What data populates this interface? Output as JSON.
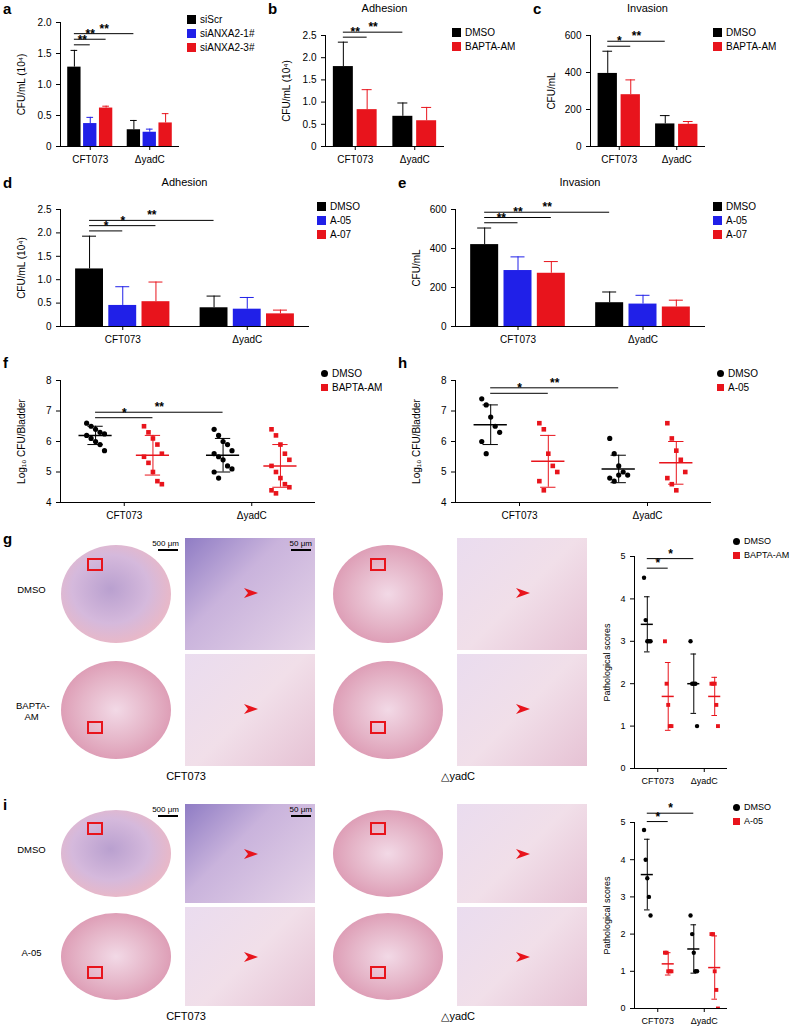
{
  "chart_data": [
    {
      "panel": "a",
      "type": "bar",
      "categories": [
        "CFT073",
        "ΔyadC"
      ],
      "ylabel": "CFU/mL (10⁴)",
      "ylim": [
        0,
        2
      ],
      "yticks": [
        0,
        0.5,
        {
          "value": 1,
          "label": "1.0"
        },
        1.5,
        {
          "value": 2,
          "label": "2.0"
        }
      ],
      "legend": "right",
      "series": [
        {
          "name": "siScr",
          "color": "#000000",
          "values": [
            1.28,
            0.27
          ],
          "errors": [
            0.27,
            0.15
          ]
        },
        {
          "name": "siANXA2-1#",
          "color": "#2020e8",
          "values": [
            0.37,
            0.23
          ],
          "errors": [
            0.1,
            0.05
          ]
        },
        {
          "name": "siANXA2-3#",
          "color": "#e8141c",
          "values": [
            0.62,
            0.38
          ],
          "errors": [
            0.03,
            0.15
          ]
        }
      ],
      "comparisons": [
        {
          "label": "**",
          "from": [
            0,
            0
          ],
          "to": [
            0,
            1
          ]
        },
        {
          "label": "**",
          "from": [
            0,
            0
          ],
          "to": [
            0,
            2
          ]
        },
        {
          "label": "**",
          "from": [
            0,
            0
          ],
          "to": [
            1,
            0
          ]
        }
      ]
    },
    {
      "panel": "b",
      "type": "bar",
      "title": "Adhesion",
      "categories": [
        "CFT073",
        "ΔyadC"
      ],
      "ylabel": "CFU/mL (10⁴)",
      "ylim": [
        0,
        2.5
      ],
      "yticks": [
        0,
        0.5,
        {
          "value": 1,
          "label": "1.0"
        },
        1.5,
        {
          "value": 2,
          "label": "2.0"
        },
        2.5
      ],
      "legend": "right",
      "series": [
        {
          "name": "DMSO",
          "color": "#000000",
          "values": [
            1.8,
            0.68
          ],
          "errors": [
            0.55,
            0.3
          ]
        },
        {
          "name": "BAPTA-AM",
          "color": "#e8141c",
          "values": [
            0.83,
            0.58
          ],
          "errors": [
            0.45,
            0.3
          ]
        }
      ],
      "comparisons": [
        {
          "label": "**",
          "from": [
            0,
            0
          ],
          "to": [
            0,
            1
          ]
        },
        {
          "label": "**",
          "from": [
            0,
            0
          ],
          "to": [
            1,
            0
          ]
        }
      ]
    },
    {
      "panel": "c",
      "type": "bar",
      "title": "Invasion",
      "categories": [
        "CFT073",
        "ΔyadC"
      ],
      "ylabel": "CFU/mL",
      "ylim": [
        0,
        600
      ],
      "yticks": [
        0,
        200,
        400,
        600
      ],
      "legend": "right",
      "series": [
        {
          "name": "DMSO",
          "color": "#000000",
          "values": [
            395,
            122
          ],
          "errors": [
            120,
            45
          ]
        },
        {
          "name": "BAPTA-AM",
          "color": "#e8141c",
          "values": [
            280,
            120
          ],
          "errors": [
            80,
            15
          ]
        }
      ],
      "comparisons": [
        {
          "label": "*",
          "from": [
            0,
            0
          ],
          "to": [
            0,
            1
          ]
        },
        {
          "label": "**",
          "from": [
            0,
            0
          ],
          "to": [
            1,
            0
          ]
        }
      ]
    },
    {
      "panel": "d",
      "type": "bar",
      "title": "Adhesion",
      "categories": [
        "CFT073",
        "ΔyadC"
      ],
      "ylabel": "CFU/mL (10⁴)",
      "ylim": [
        0,
        2.5
      ],
      "yticks": [
        0,
        0.5,
        {
          "value": 1,
          "label": "1.0"
        },
        1.5,
        {
          "value": 2,
          "label": "2.0"
        },
        2.5
      ],
      "legend": "right",
      "series": [
        {
          "name": "DMSO",
          "color": "#000000",
          "values": [
            1.23,
            0.4
          ],
          "errors": [
            0.7,
            0.25
          ]
        },
        {
          "name": "A-05",
          "color": "#2020e8",
          "values": [
            0.45,
            0.37
          ],
          "errors": [
            0.4,
            0.25
          ]
        },
        {
          "name": "A-07",
          "color": "#e8141c",
          "values": [
            0.53,
            0.27
          ],
          "errors": [
            0.42,
            0.08
          ]
        }
      ],
      "comparisons": [
        {
          "label": "*",
          "from": [
            0,
            0
          ],
          "to": [
            0,
            1
          ]
        },
        {
          "label": "*",
          "from": [
            0,
            0
          ],
          "to": [
            0,
            2
          ]
        },
        {
          "label": "**",
          "from": [
            0,
            0
          ],
          "to": [
            1,
            0
          ]
        }
      ]
    },
    {
      "panel": "e",
      "type": "bar",
      "title": "Invasion",
      "categories": [
        "CFT073",
        "ΔyadC"
      ],
      "ylabel": "CFU/mL",
      "ylim": [
        0,
        600
      ],
      "yticks": [
        0,
        200,
        400,
        600
      ],
      "legend": "right",
      "series": [
        {
          "name": "DMSO",
          "color": "#000000",
          "values": [
            420,
            122
          ],
          "errors": [
            85,
            55
          ]
        },
        {
          "name": "A-05",
          "color": "#2020e8",
          "values": [
            287,
            115
          ],
          "errors": [
            70,
            45
          ]
        },
        {
          "name": "A-07",
          "color": "#e8141c",
          "values": [
            273,
            100
          ],
          "errors": [
            60,
            35
          ]
        }
      ],
      "comparisons": [
        {
          "label": "**",
          "from": [
            0,
            0
          ],
          "to": [
            0,
            1
          ]
        },
        {
          "label": "**",
          "from": [
            0,
            0
          ],
          "to": [
            0,
            2
          ]
        },
        {
          "label": "**",
          "from": [
            0,
            0
          ],
          "to": [
            1,
            0
          ]
        }
      ]
    },
    {
      "panel": "f",
      "type": "scatter",
      "categories": [
        "CFT073",
        "ΔyadC"
      ],
      "ylabel": "Log₁₀ CFU/Bladder",
      "ylim": [
        4,
        8
      ],
      "yticks": [
        4,
        5,
        6,
        7,
        8
      ],
      "legend": "right",
      "series": [
        {
          "name": "DMSO",
          "color": "#000000",
          "marker": "circle",
          "values": [
            [
              6.6,
              6.5,
              6.4,
              6.3,
              6.25,
              6.2,
              6.1,
              6.0,
              5.9,
              5.7
            ],
            [
              6.4,
              6.2,
              6.0,
              5.9,
              5.7,
              5.6,
              5.5,
              5.4,
              5.2,
              5.1,
              5.0,
              4.8
            ]
          ],
          "mean": [
            6.2,
            5.55
          ],
          "sd": [
            0.3,
            0.55
          ]
        },
        {
          "name": "BAPTA-AM",
          "color": "#e8141c",
          "marker": "square",
          "values": [
            [
              6.5,
              6.3,
              6.1,
              5.9,
              5.6,
              5.5,
              5.3,
              5.0,
              4.7,
              4.6
            ],
            [
              6.4,
              6.2,
              5.9,
              5.6,
              5.4,
              5.2,
              5.0,
              4.8,
              4.6,
              4.5,
              4.4,
              4.3
            ]
          ],
          "mean": [
            5.55,
            5.2
          ],
          "sd": [
            0.65,
            0.7
          ]
        }
      ],
      "comparisons": [
        {
          "label": "*",
          "from": [
            0,
            0
          ],
          "to": [
            0,
            1
          ]
        },
        {
          "label": "**",
          "from": [
            0,
            0
          ],
          "to": [
            1,
            0
          ]
        }
      ]
    },
    {
      "panel": "h",
      "type": "scatter",
      "categories": [
        "CFT073",
        "ΔyadC"
      ],
      "ylabel": "Log₁₀ CFU/Bladder",
      "ylim": [
        4,
        8
      ],
      "yticks": [
        4,
        5,
        6,
        7,
        8
      ],
      "legend": "right",
      "series": [
        {
          "name": "DMSO",
          "color": "#000000",
          "marker": "circle",
          "values": [
            [
              7.4,
              7.2,
              6.8,
              6.5,
              6.3,
              6.0,
              5.6
            ],
            [
              6.1,
              5.6,
              5.2,
              5.0,
              4.9,
              4.8,
              4.7,
              4.9
            ]
          ],
          "mean": [
            6.55,
            5.1
          ],
          "sd": [
            0.65,
            0.45
          ]
        },
        {
          "name": "A-05",
          "color": "#e8141c",
          "marker": "square",
          "values": [
            [
              6.6,
              6.4,
              5.6,
              5.2,
              5.0,
              4.7,
              4.4
            ],
            [
              6.6,
              6.1,
              5.7,
              5.4,
              5.0,
              4.8,
              4.6,
              4.4
            ]
          ],
          "mean": [
            5.35,
            5.3
          ],
          "sd": [
            0.85,
            0.7
          ]
        }
      ],
      "comparisons": [
        {
          "label": "*",
          "from": [
            0,
            0
          ],
          "to": [
            0,
            1
          ]
        },
        {
          "label": "**",
          "from": [
            0,
            0
          ],
          "to": [
            1,
            0
          ]
        }
      ]
    },
    {
      "panel": "g",
      "type": "scatter",
      "categories": [
        "CFT073",
        "ΔyadC"
      ],
      "ylabel": "Pathological scores",
      "ylim": [
        0,
        5
      ],
      "yticks": [
        0,
        1,
        2,
        3,
        4,
        5
      ],
      "legend": "right",
      "images": {
        "rows": [
          "DMSO",
          "BAPTA-AM"
        ],
        "columns": [
          "CFT073",
          "△yadC"
        ],
        "scale_bars": [
          "500 μm",
          "50 μm"
        ]
      },
      "series": [
        {
          "name": "DMSO",
          "color": "#000000",
          "marker": "circle",
          "values": [
            [
              4.5,
              3.5,
              3,
              3,
              3
            ],
            [
              3,
              2,
              2,
              2,
              1
            ]
          ],
          "mean": [
            3.4,
            2
          ],
          "sd": [
            0.65,
            0.7
          ]
        },
        {
          "name": "BAPTA-AM",
          "color": "#e8141c",
          "marker": "square",
          "values": [
            [
              3,
              2,
              1.5,
              1,
              1
            ],
            [
              2,
              2,
              2,
              1.5,
              1
            ]
          ],
          "mean": [
            1.7,
            1.7
          ],
          "sd": [
            0.8,
            0.45
          ]
        }
      ],
      "comparisons": [
        {
          "label": "*",
          "from": [
            0,
            0
          ],
          "to": [
            0,
            1
          ]
        },
        {
          "label": "*",
          "from": [
            0,
            0
          ],
          "to": [
            1,
            0
          ]
        }
      ]
    },
    {
      "panel": "i",
      "type": "scatter",
      "categories": [
        "CFT073",
        "ΔyadC"
      ],
      "ylabel": "Pathological scores",
      "ylim": [
        0,
        5
      ],
      "yticks": [
        0,
        1,
        2,
        3,
        4,
        5
      ],
      "legend": "right",
      "images": {
        "rows": [
          "DMSO",
          "A-05"
        ],
        "columns": [
          "CFT073",
          "△yadC"
        ],
        "scale_bars": [
          "500 μm",
          "50 μm"
        ]
      },
      "series": [
        {
          "name": "DMSO",
          "color": "#000000",
          "marker": "circle",
          "values": [
            [
              4.8,
              4,
              3.5,
              3,
              2.5
            ],
            [
              2.5,
              2,
              1.5,
              1,
              1
            ]
          ],
          "mean": [
            3.6,
            1.6
          ],
          "sd": [
            0.95,
            0.65
          ]
        },
        {
          "name": "A-05",
          "color": "#e8141c",
          "marker": "square",
          "values": [
            [
              1.5,
              1.5,
              1,
              1,
              1
            ],
            [
              2,
              2,
              1,
              0.5,
              0
            ]
          ],
          "mean": [
            1.2,
            1.1
          ],
          "sd": [
            0.3,
            0.85
          ]
        }
      ],
      "comparisons": [
        {
          "label": "*",
          "from": [
            0,
            0
          ],
          "to": [
            0,
            1
          ]
        },
        {
          "label": "*",
          "from": [
            0,
            0
          ],
          "to": [
            1,
            0
          ]
        }
      ]
    }
  ]
}
